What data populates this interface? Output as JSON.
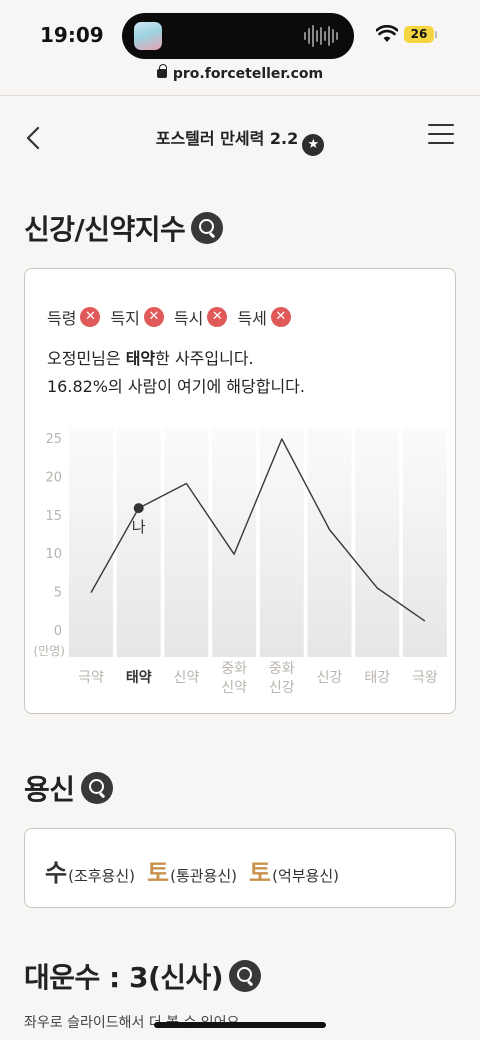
{
  "status_bar": {
    "time": "19:09",
    "battery": "26"
  },
  "browser": {
    "url": "pro.forceteller.com"
  },
  "nav": {
    "title": "포스텔러 만세력 2.2",
    "star_icon": "★"
  },
  "section_strength": {
    "title": "신강/신약지수",
    "tags": [
      {
        "label": "득령",
        "status": "✕"
      },
      {
        "label": "득지",
        "status": "✕"
      },
      {
        "label": "득시",
        "status": "✕"
      },
      {
        "label": "득세",
        "status": "✕"
      }
    ],
    "desc_prefix": "오정민님은 ",
    "desc_bold": "태약",
    "desc_suffix": "한 사주입니다.",
    "desc_line2": "16.82%의 사람이 여기에 해당합니다."
  },
  "chart_data": {
    "type": "line",
    "categories": [
      [
        "극약"
      ],
      [
        "태약"
      ],
      [
        "신약"
      ],
      [
        "중화",
        "신약"
      ],
      [
        "중화",
        "신강"
      ],
      [
        "신강"
      ],
      [
        "태강"
      ],
      [
        "극왕"
      ]
    ],
    "values": [
      5,
      16,
      19.2,
      10,
      25,
      13.2,
      5.6,
      1.3
    ],
    "y_ticks": [
      "25",
      "20",
      "15",
      "10",
      "5",
      "0"
    ],
    "ylabel": "(만명)",
    "ylim": [
      0,
      25
    ],
    "marker": {
      "index": 1,
      "label": "나"
    },
    "highlight_index": 1
  },
  "section_yongsin": {
    "title": "용신",
    "items": [
      {
        "char": "수",
        "desc": "(조후용신)",
        "color": "#333333"
      },
      {
        "char": "토",
        "desc": "(통관용신)",
        "color": "#c8924e"
      },
      {
        "char": "토",
        "desc": "(억부용신)",
        "color": "#c8924e"
      }
    ]
  },
  "section_daeun": {
    "title": "대운수 : 3(신사)",
    "hint": "좌우로 슬라이드해서 더 볼 수 있어요"
  }
}
